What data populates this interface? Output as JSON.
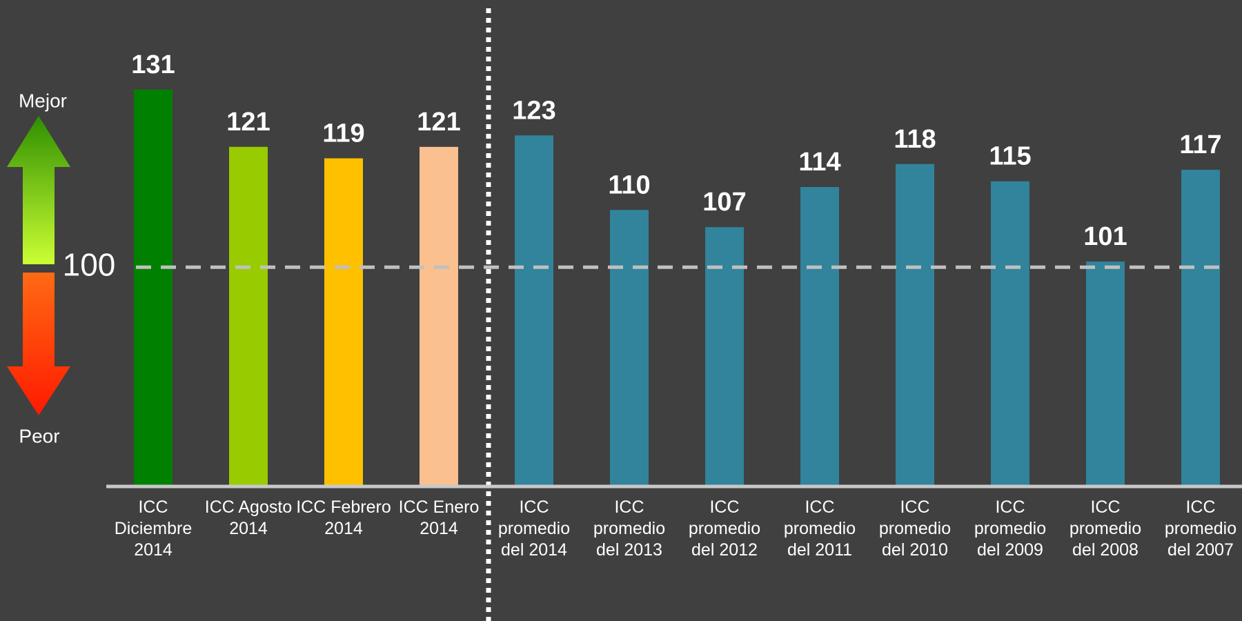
{
  "chart_data": {
    "type": "bar",
    "categories": [
      "ICC Diciembre 2014",
      "ICC Agosto 2014",
      "ICC Febrero 2014",
      "ICC Enero 2014",
      "ICC promedio del 2014",
      "ICC promedio del 2013",
      "ICC promedio del 2012",
      "ICC promedio del 2011",
      "ICC promedio del 2010",
      "ICC promedio del 2009",
      "ICC promedio del 2008",
      "ICC promedio del 2007"
    ],
    "values": [
      131,
      121,
      119,
      121,
      123,
      110,
      107,
      114,
      118,
      115,
      101,
      117
    ],
    "colors": [
      "#008000",
      "#99cc00",
      "#ffc000",
      "#fac090",
      "#31849b",
      "#31849b",
      "#31849b",
      "#31849b",
      "#31849b",
      "#31849b",
      "#31849b",
      "#31849b"
    ],
    "ylim": [
      62,
      140
    ],
    "reference_line": {
      "value": 100,
      "label": "100"
    },
    "annotations": {
      "better": "Mejor",
      "worse": "Peor"
    }
  }
}
